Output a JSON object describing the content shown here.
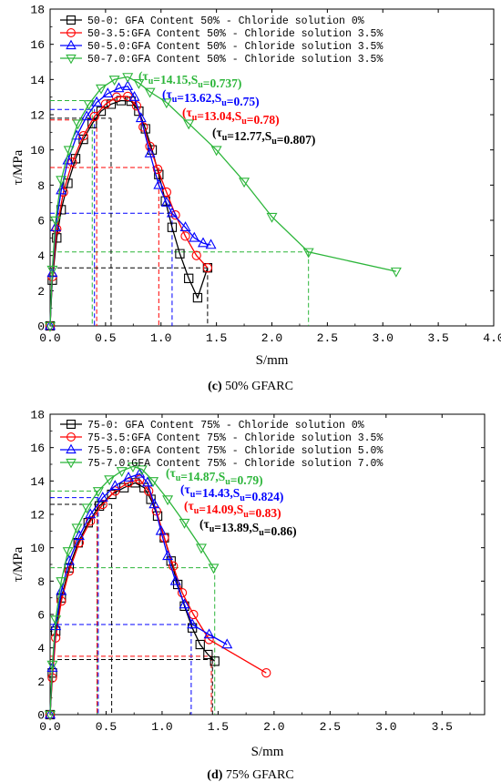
{
  "chart_data": [
    {
      "type": "line",
      "caption_letter": "(c)",
      "caption_text": " 50% GFARC",
      "xlabel": "S/mm",
      "ylabel": "τ/MPa",
      "xlim": [
        0,
        4
      ],
      "ylim": [
        0,
        18
      ],
      "xticks": [
        "0.0",
        "0.5",
        "1.0",
        "1.5",
        "2.0",
        "2.5",
        "3.0",
        "3.5",
        "4.0"
      ],
      "yticks": [
        "0",
        "2",
        "4",
        "6",
        "8",
        "10",
        "12",
        "14",
        "16",
        "18"
      ],
      "legend_position": "top-left",
      "series": [
        {
          "name": "50-0: GFA Content 50% - Chloride solution 0%",
          "color": "#000000",
          "marker": "square",
          "x": [
            0.0,
            0.02,
            0.06,
            0.1,
            0.16,
            0.23,
            0.3,
            0.38,
            0.46,
            0.55,
            0.64,
            0.73,
            0.8,
            0.86,
            0.92,
            0.98,
            1.04,
            1.1,
            1.17,
            1.25,
            1.33,
            1.42
          ],
          "y": [
            0.0,
            2.6,
            5.0,
            6.6,
            8.1,
            9.5,
            10.6,
            11.5,
            12.2,
            12.6,
            12.8,
            12.77,
            12.2,
            11.2,
            10.0,
            8.6,
            7.1,
            5.6,
            4.1,
            2.7,
            1.6,
            3.3
          ]
        },
        {
          "name": "50-3.5:GFA Content 50% - Chloride solution 3.5%",
          "color": "#ff0000",
          "marker": "circle",
          "x": [
            0.0,
            0.02,
            0.06,
            0.12,
            0.2,
            0.3,
            0.4,
            0.5,
            0.6,
            0.7,
            0.78,
            0.84,
            0.9,
            0.97,
            1.05,
            1.13,
            1.22,
            1.32,
            1.42
          ],
          "y": [
            0.0,
            2.8,
            5.5,
            7.6,
            9.3,
            10.8,
            11.9,
            12.6,
            13.0,
            13.04,
            12.5,
            11.3,
            10.2,
            8.9,
            7.6,
            6.3,
            5.1,
            4.0,
            3.3
          ]
        },
        {
          "name": "50-5.0:GFA Content 50% - Chloride solution 3.5%",
          "color": "#0000ff",
          "marker": "triangle-up",
          "x": [
            0.0,
            0.02,
            0.05,
            0.1,
            0.16,
            0.24,
            0.33,
            0.42,
            0.52,
            0.62,
            0.7,
            0.76,
            0.82,
            0.9,
            0.98,
            1.05,
            1.1,
            1.22,
            1.3,
            1.38,
            1.45
          ],
          "y": [
            0.0,
            3.0,
            5.6,
            7.7,
            9.4,
            10.8,
            11.9,
            12.7,
            13.2,
            13.5,
            13.62,
            13.0,
            11.8,
            9.8,
            8.0,
            7.0,
            6.4,
            5.6,
            5.0,
            4.7,
            4.6
          ]
        },
        {
          "name": "50-7.0:GFA Content 50% - Chloride solution 3.5%",
          "color": "#2bb539",
          "marker": "triangle-down",
          "x": [
            0.0,
            0.02,
            0.05,
            0.1,
            0.17,
            0.25,
            0.35,
            0.46,
            0.58,
            0.7,
            0.8,
            0.9,
            1.05,
            1.25,
            1.5,
            1.75,
            2.0,
            2.33,
            3.12
          ],
          "y": [
            0.0,
            3.2,
            6.0,
            8.3,
            10.0,
            11.5,
            12.6,
            13.5,
            14.0,
            14.15,
            13.8,
            13.3,
            12.7,
            11.5,
            10.0,
            8.2,
            6.2,
            4.2,
            3.1
          ]
        }
      ],
      "annotations": [
        {
          "text": "(τu=14.15,Su=0.737)",
          "color": "#2bb539"
        },
        {
          "text": "(τu=13.62,Su=0.75)",
          "color": "#0000ff"
        },
        {
          "text": "(τu=13.04,Su=0.78)",
          "color": "#ff0000"
        },
        {
          "text": "(τu=12.77,Su=0.807)",
          "color": "#000000"
        }
      ],
      "reference_lines": [
        {
          "color": "#2bb539",
          "x": [
            0.38,
            2.33
          ],
          "y": [
            12.8,
            4.2
          ]
        },
        {
          "color": "#0000ff",
          "x": [
            0.4,
            1.1
          ],
          "y": [
            12.3,
            6.4
          ]
        },
        {
          "color": "#ff0000",
          "x": [
            0.42,
            0.98
          ],
          "y": [
            11.7,
            9.0
          ]
        },
        {
          "color": "#000000",
          "x": [
            0.55,
            1.42
          ],
          "y": [
            11.8,
            3.3
          ]
        }
      ]
    },
    {
      "type": "line",
      "caption_letter": "(d)",
      "caption_text": " 75% GFARC",
      "xlabel": "S/mm",
      "ylabel": "τ/MPa",
      "xlim": [
        0,
        4
      ],
      "ylim": [
        0,
        18
      ],
      "xticks": [
        "0.0",
        "0.5",
        "1.0",
        "1.5",
        "2.0",
        "2.5",
        "3.0",
        "3.5"
      ],
      "yticks": [
        "0",
        "2",
        "4",
        "6",
        "8",
        "10",
        "12",
        "14",
        "16",
        "18"
      ],
      "legend_position": "top-left",
      "series": [
        {
          "name": "75-0: GFA Content 75% - Chloride solution 0%",
          "color": "#000000",
          "marker": "square",
          "x": [
            0.0,
            0.02,
            0.05,
            0.1,
            0.17,
            0.25,
            0.34,
            0.44,
            0.55,
            0.66,
            0.76,
            0.84,
            0.9,
            0.96,
            1.02,
            1.08,
            1.14,
            1.2,
            1.27,
            1.34,
            1.41,
            1.47
          ],
          "y": [
            0.0,
            2.5,
            5.0,
            7.0,
            8.8,
            10.3,
            11.5,
            12.5,
            13.2,
            13.6,
            13.89,
            13.6,
            12.9,
            11.9,
            10.6,
            9.2,
            7.8,
            6.5,
            5.2,
            4.2,
            3.6,
            3.2
          ]
        },
        {
          "name": "75-3.5:GFA Content 75% - Chloride solution 3.5%",
          "color": "#ff0000",
          "marker": "circle",
          "x": [
            0.0,
            0.02,
            0.05,
            0.1,
            0.17,
            0.26,
            0.36,
            0.47,
            0.58,
            0.7,
            0.8,
            0.88,
            0.95,
            1.02,
            1.1,
            1.18,
            1.28,
            1.42,
            1.93
          ],
          "y": [
            0.0,
            2.2,
            4.6,
            6.8,
            8.6,
            10.3,
            11.6,
            12.6,
            13.4,
            13.9,
            14.09,
            13.4,
            12.2,
            10.6,
            8.9,
            7.3,
            6.0,
            4.5,
            2.5
          ]
        },
        {
          "name": "75-5.0:GFA Content 75% - Chloride solution 5.0%",
          "color": "#0000ff",
          "marker": "triangle-up",
          "x": [
            0.0,
            0.02,
            0.05,
            0.1,
            0.17,
            0.26,
            0.36,
            0.47,
            0.58,
            0.7,
            0.8,
            0.87,
            0.93,
            0.99,
            1.05,
            1.12,
            1.2,
            1.27,
            1.42,
            1.58
          ],
          "y": [
            0.0,
            2.8,
            5.3,
            7.4,
            9.2,
            10.7,
            12.0,
            13.0,
            13.7,
            14.2,
            14.43,
            13.9,
            12.6,
            11.0,
            9.5,
            8.0,
            6.6,
            5.4,
            4.8,
            4.2
          ]
        },
        {
          "name": "75-7.0:GFA Content 75% - Chloride solution 7.0%",
          "color": "#2bb539",
          "marker": "triangle-down",
          "x": [
            0.0,
            0.02,
            0.05,
            0.1,
            0.16,
            0.24,
            0.33,
            0.43,
            0.53,
            0.64,
            0.74,
            0.82,
            0.92,
            1.05,
            1.2,
            1.35,
            1.46
          ],
          "y": [
            0.0,
            3.0,
            5.7,
            8.0,
            9.8,
            11.2,
            12.4,
            13.4,
            14.1,
            14.6,
            14.87,
            14.7,
            14.0,
            12.9,
            11.5,
            10.0,
            8.8
          ]
        }
      ],
      "annotations": [
        {
          "text": "(τu=14.87,Su=0.79)",
          "color": "#2bb539"
        },
        {
          "text": "(τu=14.43,Su=0.824)",
          "color": "#0000ff"
        },
        {
          "text": "(τu=14.09,Su=0.83)",
          "color": "#ff0000"
        },
        {
          "text": "(τu=13.89,Su=0.86)",
          "color": "#000000"
        }
      ],
      "reference_lines": [
        {
          "color": "#2bb539",
          "x": [
            0.42,
            1.47
          ],
          "y": [
            13.4,
            8.8
          ]
        },
        {
          "color": "#0000ff",
          "x": [
            0.43,
            1.26
          ],
          "y": [
            13.0,
            5.4
          ]
        },
        {
          "color": "#ff0000",
          "x": [
            0.42,
            1.44
          ],
          "y": [
            12.6,
            3.5
          ]
        },
        {
          "color": "#000000",
          "x": [
            0.55,
            1.45
          ],
          "y": [
            12.6,
            3.3
          ]
        }
      ]
    }
  ]
}
